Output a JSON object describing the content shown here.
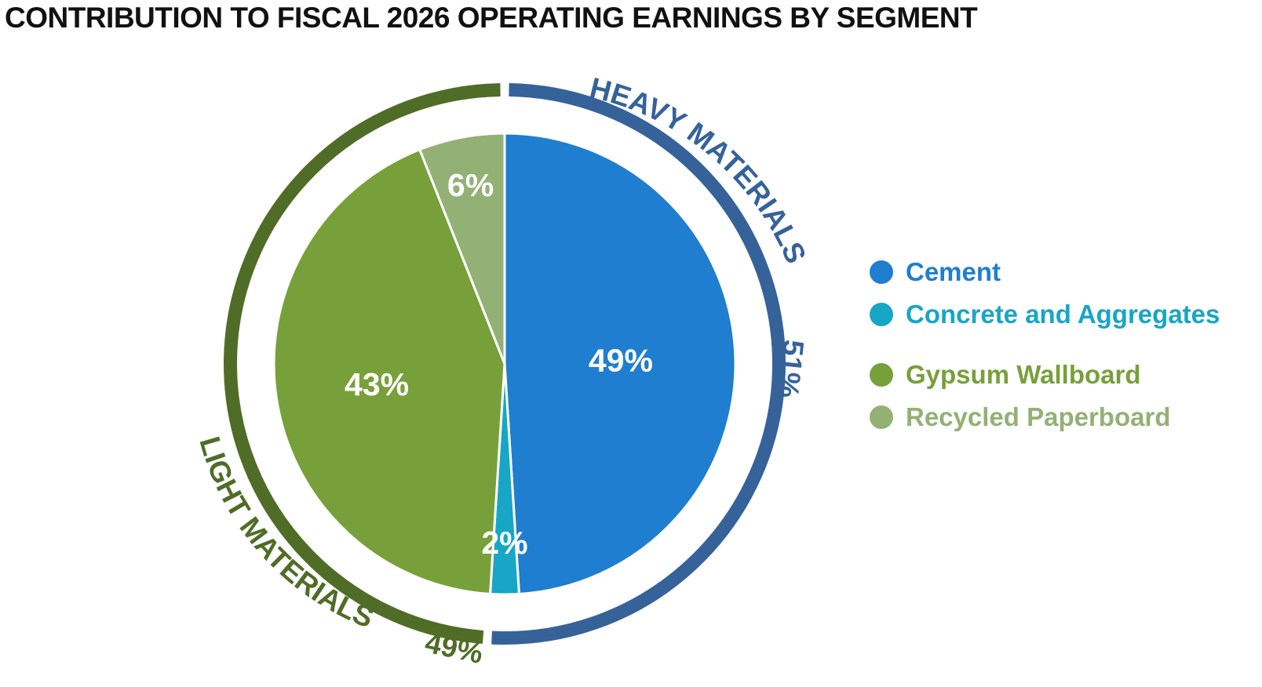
{
  "chart_data": {
    "type": "pie",
    "title": "CONTRIBUTION TO FISCAL 2026 OPERATING EARNINGS BY SEGMENT",
    "slices": [
      {
        "name": "Cement",
        "value": 49,
        "label": "49%",
        "color": "#1f7ecf"
      },
      {
        "name": "Concrete and Aggregates",
        "value": 2,
        "label": "2%",
        "color": "#17a6c6"
      },
      {
        "name": "Gypsum Wallboard",
        "value": 43,
        "label": "43%",
        "color": "#78a03a"
      },
      {
        "name": "Recycled Paperboard",
        "value": 6,
        "label": "6%",
        "color": "#93b174"
      }
    ],
    "groups": [
      {
        "name": "HEAVY MATERIALS",
        "percent_label": "51%",
        "value": 51,
        "color": "#36629a",
        "members": [
          "Cement",
          "Concrete and Aggregates"
        ]
      },
      {
        "name": "LIGHT MATERIALS",
        "percent_label": "49%",
        "value": 49,
        "color": "#4f6d26",
        "members": [
          "Gypsum Wallboard",
          "Recycled Paperboard"
        ]
      }
    ],
    "legend": {
      "placement": "right",
      "items": [
        {
          "label": "Cement",
          "color": "#1f7ecf"
        },
        {
          "label": "Concrete and Aggregates",
          "color": "#17a6c6"
        },
        {
          "label": "Gypsum Wallboard",
          "color": "#78a03a"
        },
        {
          "label": "Recycled Paperboard",
          "color": "#93b174"
        }
      ]
    }
  }
}
